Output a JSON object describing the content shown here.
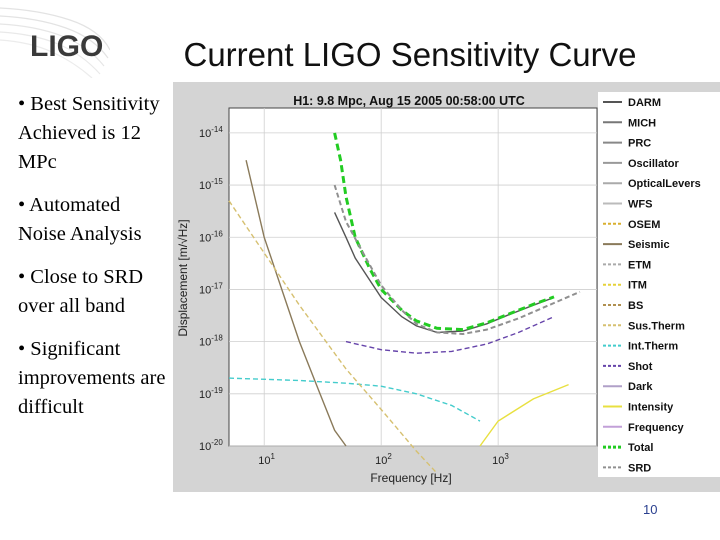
{
  "slide": {
    "logo_text": "LIGO",
    "title": "Current LIGO Sensitivity Curve",
    "bullets": [
      "• Best Sensitivity Achieved is 12 MPc",
      "• Automated Noise Analysis",
      "• Close to SRD over all band",
      "• Significant improvements are difficult"
    ],
    "page_number": "10"
  },
  "colors": {
    "plot_bg": "#ffffff",
    "frame_bg": "#d4d4d4",
    "total": "#22cc22",
    "srd": "#909090",
    "darm": "#555555",
    "accent_blue": "#2a3f8f"
  },
  "chart_data": {
    "type": "line",
    "title": "H1: 9.8 Mpc, Aug 15 2005 00:58:00 UTC",
    "xlabel": "Frequency [Hz]",
    "ylabel": "Displacement [m/√Hz]",
    "x_scale": "log",
    "y_scale": "log",
    "xlim": [
      5,
      7000
    ],
    "ylim": [
      1e-20,
      3e-14
    ],
    "x_ticks": [
      {
        "value": 10,
        "base": "10",
        "exp": "1"
      },
      {
        "value": 100,
        "base": "10",
        "exp": "2"
      },
      {
        "value": 1000,
        "base": "10",
        "exp": "3"
      }
    ],
    "y_ticks": [
      {
        "value": 1e-14,
        "base": "10",
        "exp": "-14"
      },
      {
        "value": 1e-15,
        "base": "10",
        "exp": "-15"
      },
      {
        "value": 1e-16,
        "base": "10",
        "exp": "-16"
      },
      {
        "value": 1e-17,
        "base": "10",
        "exp": "-17"
      },
      {
        "value": 1e-18,
        "base": "10",
        "exp": "-18"
      },
      {
        "value": 1e-19,
        "base": "10",
        "exp": "-19"
      },
      {
        "value": 1e-20,
        "base": "10",
        "exp": "-20"
      }
    ],
    "grid": true,
    "legend_position": "right",
    "legend": [
      {
        "name": "DARM",
        "color": "#555555",
        "style": "solid"
      },
      {
        "name": "MICH",
        "color": "#777777",
        "style": "solid"
      },
      {
        "name": "PRC",
        "color": "#888888",
        "style": "solid"
      },
      {
        "name": "Oscillator",
        "color": "#999999",
        "style": "solid"
      },
      {
        "name": "OpticalLevers",
        "color": "#aaaaaa",
        "style": "solid"
      },
      {
        "name": "WFS",
        "color": "#bbbbbb",
        "style": "solid"
      },
      {
        "name": "OSEM",
        "color": "#d9b030",
        "style": "dashed"
      },
      {
        "name": "Seismic",
        "color": "#8a7a5a",
        "style": "solid"
      },
      {
        "name": "ETM",
        "color": "#aaaaaa",
        "style": "dashed"
      },
      {
        "name": "ITM",
        "color": "#e6d23a",
        "style": "dashed"
      },
      {
        "name": "BS",
        "color": "#b09050",
        "style": "dashed"
      },
      {
        "name": "Sus.Therm",
        "color": "#d6c070",
        "style": "dashed"
      },
      {
        "name": "Int.Therm",
        "color": "#44cccc",
        "style": "dashed"
      },
      {
        "name": "Shot",
        "color": "#6644aa",
        "style": "dashed"
      },
      {
        "name": "Dark",
        "color": "#b0a0c8",
        "style": "solid"
      },
      {
        "name": "Intensity",
        "color": "#e8e040",
        "style": "solid"
      },
      {
        "name": "Frequency",
        "color": "#c2a0d8",
        "style": "solid"
      },
      {
        "name": "Total",
        "color": "#22cc22",
        "style": "dashed"
      },
      {
        "name": "SRD",
        "color": "#909090",
        "style": "dashed"
      }
    ],
    "series": [
      {
        "name": "DARM",
        "color": "#555555",
        "x": [
          40,
          50,
          60,
          80,
          100,
          150,
          200,
          300,
          500,
          800,
          1200,
          2000,
          3000
        ],
        "y": [
          3e-16,
          1e-16,
          4e-17,
          1.5e-17,
          7e-18,
          3e-18,
          2e-18,
          1.5e-18,
          1.6e-18,
          2.2e-18,
          3.2e-18,
          5e-18,
          7e-18
        ]
      },
      {
        "name": "Total",
        "color": "#22cc22",
        "x": [
          40,
          45,
          50,
          60,
          80,
          100,
          150,
          200,
          300,
          500,
          800,
          1200,
          2000,
          3000
        ],
        "y": [
          1e-14,
          3e-15,
          6e-16,
          1e-16,
          2.5e-17,
          1e-17,
          4e-18,
          2.5e-18,
          1.8e-18,
          1.7e-18,
          2.3e-18,
          3.3e-18,
          5.2e-18,
          7.2e-18
        ]
      },
      {
        "name": "SRD",
        "color": "#909090",
        "x": [
          40,
          50,
          70,
          100,
          150,
          200,
          300,
          500,
          800,
          1500,
          3000,
          5000
        ],
        "y": [
          1e-15,
          2e-16,
          5e-17,
          1.2e-17,
          4e-18,
          2.2e-18,
          1.5e-18,
          1.4e-18,
          1.7e-18,
          2.8e-18,
          5.5e-18,
          9e-18
        ]
      },
      {
        "name": "Seismic",
        "color": "#8a7a5a",
        "x": [
          7,
          10,
          20,
          30,
          40,
          50
        ],
        "y": [
          3e-15,
          1e-16,
          1e-18,
          1e-19,
          2e-20,
          1e-20
        ]
      },
      {
        "name": "Shot",
        "color": "#6644aa",
        "x": [
          50,
          100,
          200,
          400,
          800,
          1500,
          3000
        ],
        "y": [
          1e-18,
          7e-19,
          6e-19,
          6.5e-19,
          9e-19,
          1.5e-18,
          3e-18
        ]
      },
      {
        "name": "Int.Therm",
        "color": "#44cccc",
        "x": [
          5,
          20,
          50,
          100,
          200,
          400,
          700
        ],
        "y": [
          2e-19,
          1.8e-19,
          1.6e-19,
          1.4e-19,
          1e-19,
          6e-20,
          3e-20
        ]
      },
      {
        "name": "Sus.Therm",
        "color": "#d6c070",
        "x": [
          5,
          10,
          20,
          50,
          100,
          200,
          300
        ],
        "y": [
          5e-16,
          5e-17,
          5e-18,
          3e-19,
          5e-20,
          8e-21,
          3e-21
        ]
      },
      {
        "name": "Intensity",
        "color": "#e8e040",
        "x": [
          700,
          1000,
          2000,
          4000
        ],
        "y": [
          1e-20,
          3e-20,
          8e-20,
          1.5e-19
        ]
      }
    ]
  }
}
